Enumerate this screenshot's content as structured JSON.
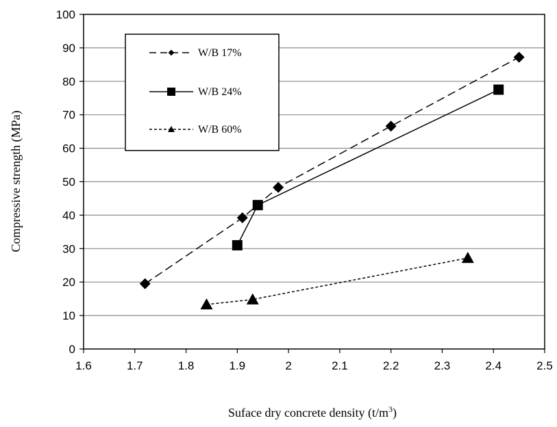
{
  "chart_data": {
    "type": "line",
    "xlabel": "Suface dry concrete density (t/m",
    "xlabel_sup": "3",
    "xlabel_end": ")",
    "ylabel": "Compressive strength (MPa)",
    "xlim": [
      1.6,
      2.5
    ],
    "ylim": [
      0,
      100
    ],
    "x_ticks": [
      "1.6",
      "1.7",
      "1.8",
      "1.9",
      "2",
      "2.1",
      "2.2",
      "2.3",
      "2.4",
      "2.5"
    ],
    "y_ticks": [
      "0",
      "10",
      "20",
      "30",
      "40",
      "50",
      "60",
      "70",
      "80",
      "90",
      "100"
    ],
    "grid": "horizontal",
    "legend_position": "top-left",
    "series": [
      {
        "name": "W/B 17%",
        "marker": "diamond",
        "line": "long-dash",
        "points": [
          [
            1.72,
            19.5
          ],
          [
            1.91,
            39.2
          ],
          [
            1.98,
            48.3
          ],
          [
            2.2,
            66.6
          ],
          [
            2.45,
            87.2
          ]
        ]
      },
      {
        "name": "W/B 24%",
        "marker": "square",
        "line": "solid",
        "points": [
          [
            1.9,
            31.0
          ],
          [
            1.94,
            43.0
          ],
          [
            2.41,
            77.5
          ]
        ]
      },
      {
        "name": "W/B 60%",
        "marker": "triangle",
        "line": "short-dash",
        "points": [
          [
            1.84,
            13.3
          ],
          [
            1.93,
            14.8
          ],
          [
            2.35,
            27.2
          ]
        ]
      }
    ]
  }
}
